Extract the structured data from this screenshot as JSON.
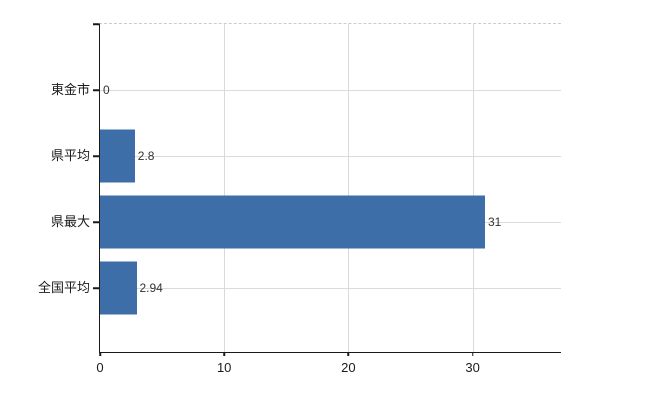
{
  "chart_data": {
    "type": "bar",
    "orientation": "horizontal",
    "title": "",
    "xlabel": "",
    "ylabel": "",
    "categories": [
      "東金市",
      "県平均",
      "県最大",
      "全国平均"
    ],
    "values": [
      0,
      2.8,
      31,
      2.94
    ],
    "data_labels": [
      "0",
      "2.8",
      "31",
      "2.94"
    ],
    "x_ticks": [
      0,
      10,
      20,
      30
    ],
    "x_tick_labels": [
      "0",
      "10",
      "20",
      "30"
    ],
    "xlim": [
      0,
      37.2
    ],
    "grid": true,
    "legend_position": "none",
    "colors": {
      "bar": "#3e6ea8",
      "vertical_gridline": "#d9d9d9",
      "horizontal_gridline": "#d9dcd7",
      "axis": "#1a1a1a",
      "category_label": "#1a1a1a",
      "tick_label": "#1a1a1a",
      "data_label": "#333333",
      "background": "#ffffff",
      "plot_top_border_dashed": "#cccccc"
    }
  }
}
